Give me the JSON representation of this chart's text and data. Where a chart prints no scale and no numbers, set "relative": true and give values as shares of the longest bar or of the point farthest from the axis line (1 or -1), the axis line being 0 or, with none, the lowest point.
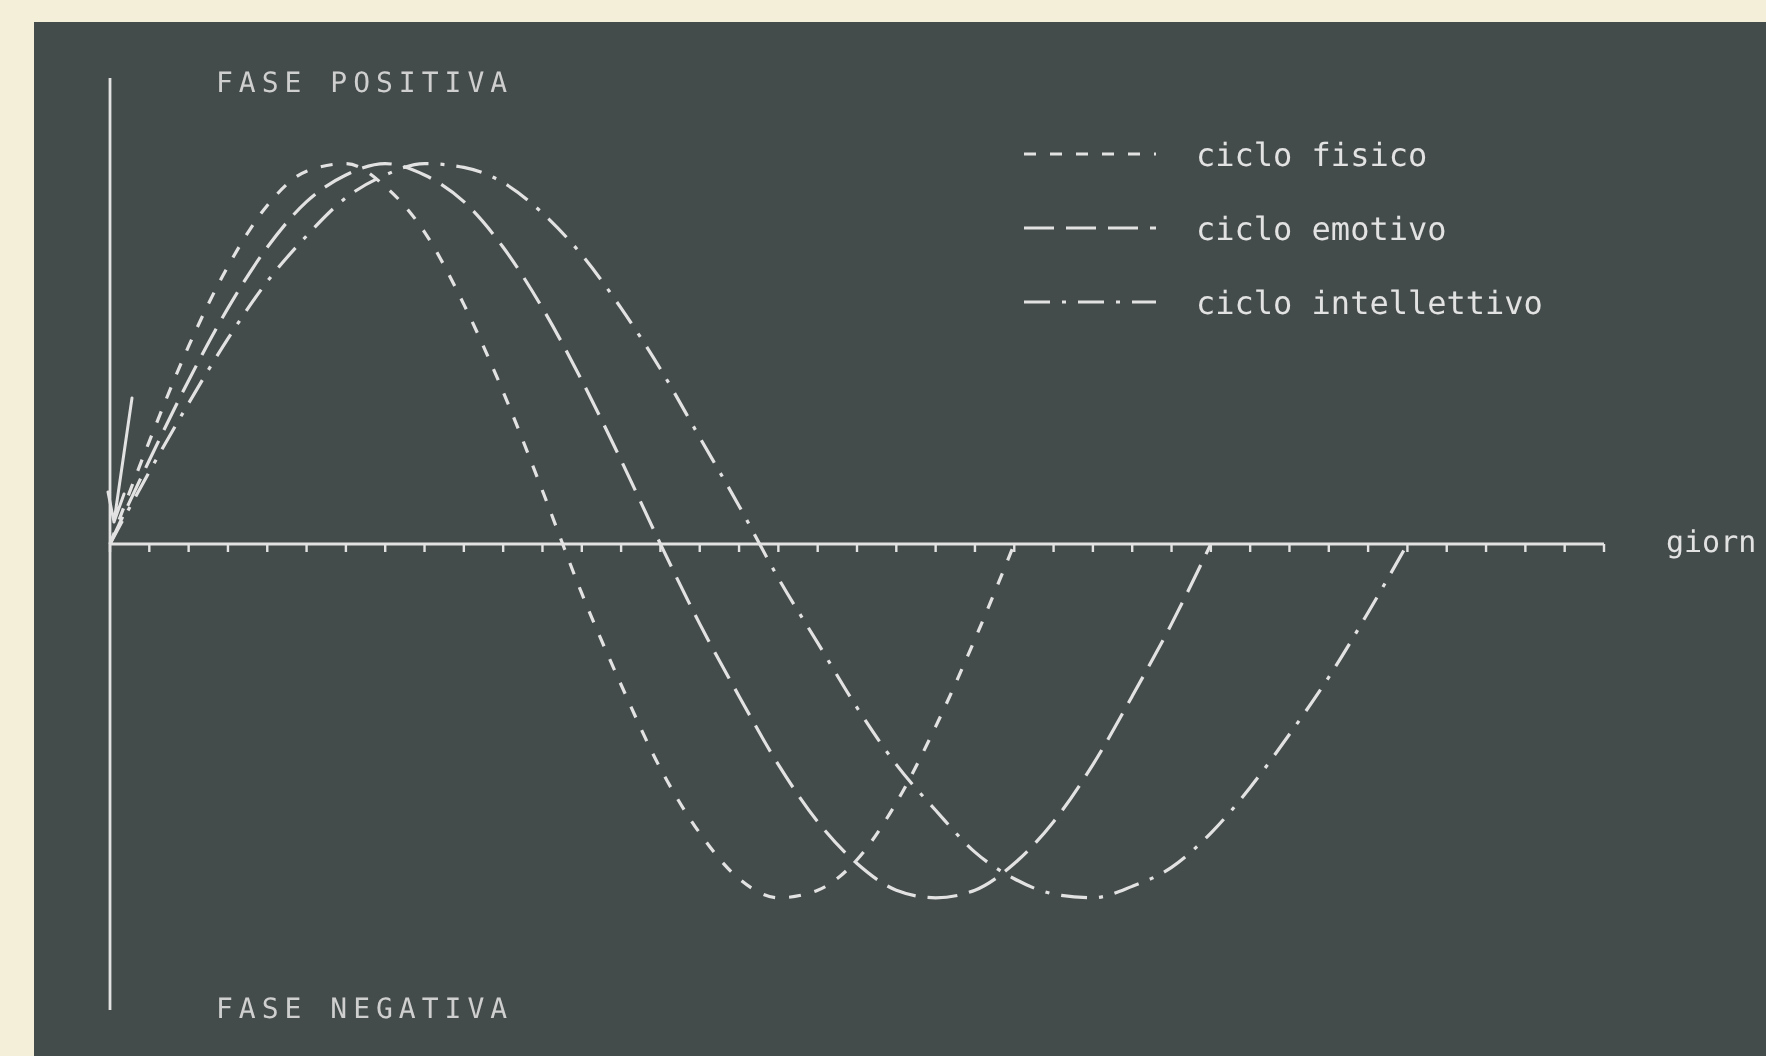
{
  "chart_data": {
    "type": "line",
    "relative": true,
    "xlabel": "giorn",
    "annotations": [
      "FASE POSITIVA",
      "FASE NEGATIVA"
    ],
    "legend": "top right",
    "categories": [
      null,
      null,
      null,
      null,
      null,
      null,
      null,
      null,
      null,
      null,
      null,
      null,
      null,
      null,
      null,
      null,
      null,
      null,
      null,
      null,
      null,
      null,
      null,
      null,
      null,
      null,
      null,
      null,
      null,
      null,
      null,
      null,
      null,
      null,
      null,
      null,
      null,
      null,
      null
    ],
    "series": [
      {
        "name": "ciclo fisico",
        "color": "#e2e2e2",
        "line_style": "dashed",
        "values": [
          0,
          0.27,
          0.52,
          0.73,
          0.89,
          0.98,
          1,
          0.94,
          0.82,
          0.63,
          0.4,
          0.14,
          -0.13,
          -0.37,
          -0.59,
          -0.76,
          -0.88,
          -0.93,
          -0.91,
          -0.83,
          -0.68,
          -0.48,
          -0.25,
          0,
          null,
          null,
          null,
          null,
          null,
          null,
          null,
          null,
          null,
          null,
          null,
          null,
          null,
          null,
          null
        ]
      },
      {
        "name": "ciclo emotivo",
        "color": "#e2e2e2",
        "line_style": "longdash",
        "values": [
          0,
          0.22,
          0.43,
          0.62,
          0.78,
          0.9,
          0.97,
          1,
          0.97,
          0.9,
          0.78,
          0.62,
          0.43,
          0.22,
          0,
          -0.21,
          -0.4,
          -0.58,
          -0.73,
          -0.84,
          -0.91,
          -0.93,
          -0.91,
          -0.84,
          -0.73,
          -0.58,
          -0.4,
          -0.21,
          0,
          null,
          null,
          null,
          null,
          null,
          null,
          null,
          null,
          null,
          null
        ]
      },
      {
        "name": "ciclo intellettivo",
        "color": "#e2e2e2",
        "line_style": "dashdot",
        "values": [
          0,
          0.19,
          0.37,
          0.54,
          0.69,
          0.81,
          0.91,
          0.97,
          1,
          0.99,
          0.95,
          0.87,
          0.76,
          0.62,
          0.46,
          0.28,
          0.1,
          -0.09,
          -0.26,
          -0.43,
          -0.58,
          -0.7,
          -0.81,
          -0.88,
          -0.92,
          -0.93,
          -0.9,
          -0.85,
          -0.76,
          -0.64,
          -0.5,
          -0.35,
          -0.18,
          0,
          null,
          null,
          null,
          null,
          null
        ]
      }
    ]
  }
}
